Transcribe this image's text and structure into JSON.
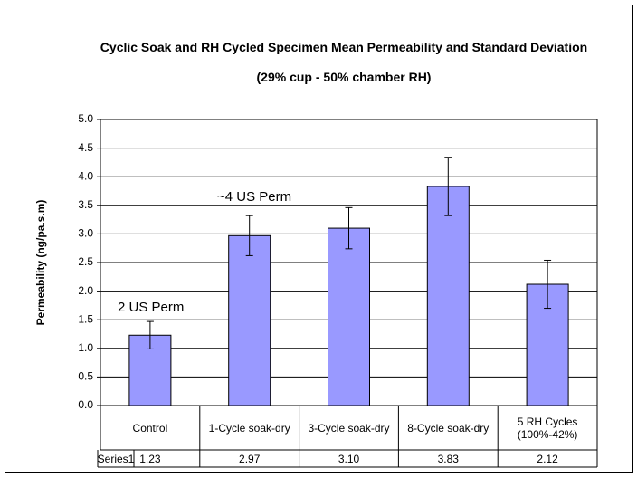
{
  "chart_data": {
    "type": "bar",
    "title": "Cyclic Soak and RH Cycled Specimen Mean Permeability and Standard Deviation",
    "subtitle": "(29% cup - 50% chamber RH)",
    "y_label": "Permeability (ng/pa.s.m)",
    "annotations": [
      "2 US Perm",
      "~4 US Perm"
    ],
    "categories": [
      "Control",
      "1-Cycle soak-dry",
      "3-Cycle soak-dry",
      "8-Cycle soak-dry",
      "5 RH Cycles (100%-42%)"
    ],
    "series": [
      {
        "name": "Series1",
        "color": "#9999ff",
        "values": [
          1.23,
          2.97,
          3.1,
          3.83,
          2.12
        ],
        "value_labels": [
          "1.23",
          "2.97",
          "3.10",
          "3.83",
          "2.12"
        ],
        "errors": [
          0.24,
          0.35,
          0.36,
          0.51,
          0.42
        ]
      }
    ],
    "ylim": [
      0,
      5
    ],
    "yticks": [
      {
        "value": 0,
        "label": "0.0"
      },
      {
        "value": 0.5,
        "label": "0.5"
      },
      {
        "value": 1,
        "label": "1.0"
      },
      {
        "value": 1.5,
        "label": "1.5"
      },
      {
        "value": 2,
        "label": "2.0"
      },
      {
        "value": 2.5,
        "label": "2.5"
      },
      {
        "value": 3,
        "label": "3.0"
      },
      {
        "value": 3.5,
        "label": "3.5"
      },
      {
        "value": 4,
        "label": "4.0"
      },
      {
        "value": 4.5,
        "label": "4.5"
      },
      {
        "value": 5,
        "label": "5.0"
      }
    ],
    "grid": true,
    "data_table": true
  }
}
